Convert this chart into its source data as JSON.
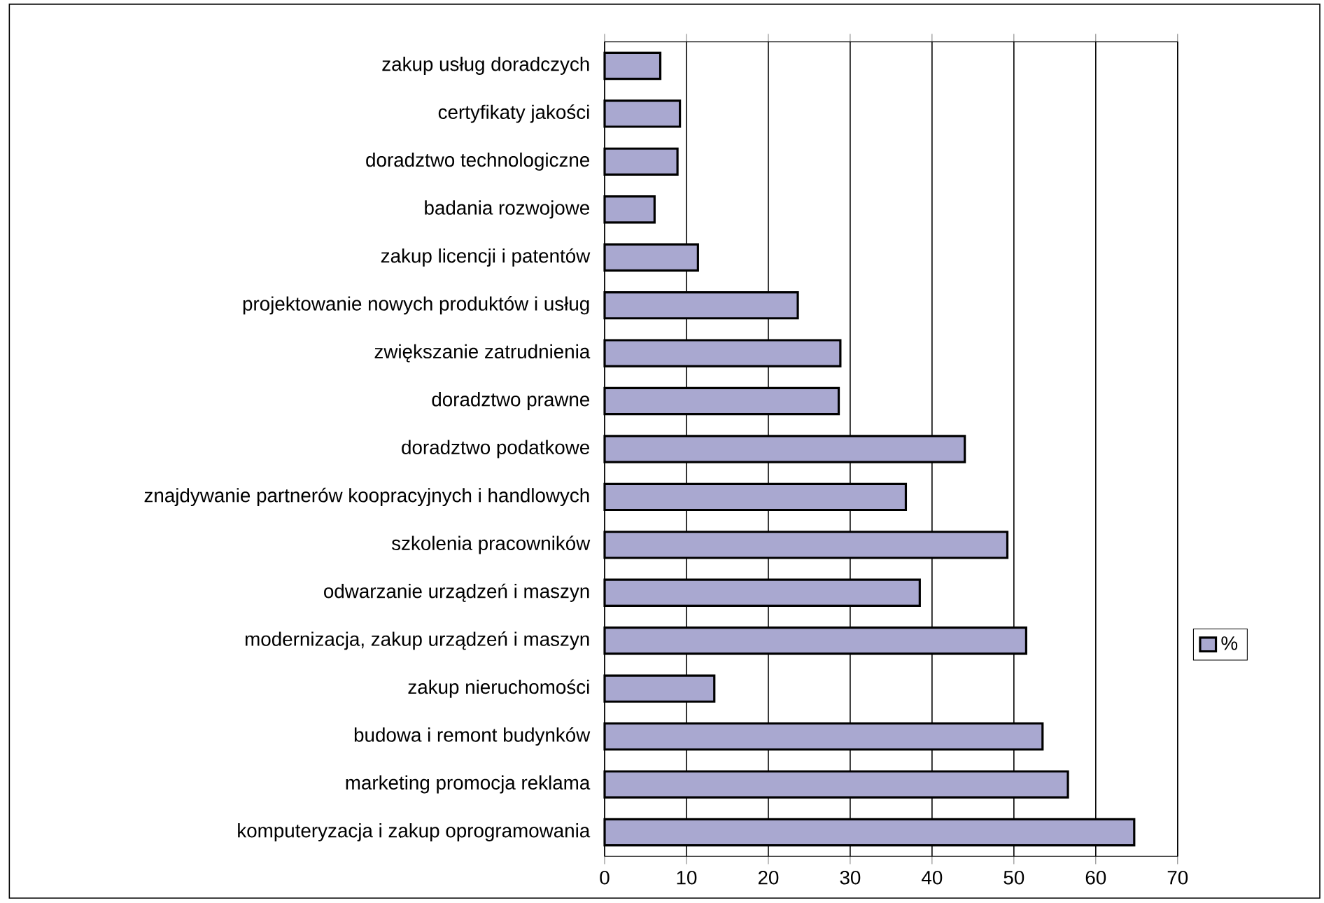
{
  "chart_data": {
    "type": "bar",
    "orientation": "horizontal",
    "categories": [
      "zakup usług doradczych",
      "certyfikaty jakości",
      "doradztwo technologiczne",
      "badania rozwojowe",
      "zakup licencji i patentów",
      "projektowanie nowych produktów i usług",
      "zwiększanie zatrudnienia",
      "doradztwo  prawne",
      "doradztwo  podatkowe",
      "znajdywanie partnerów koopracyjnych i handlowych",
      "szkolenia pracowników",
      "odwarzanie urządzeń i maszyn",
      "modernizacja, zakup urządzeń i maszyn",
      "zakup nieruchomości",
      "budowa i remont budynków",
      "marketing promocja reklama",
      "komputeryzacja i zakup oprogramowania"
    ],
    "series": [
      {
        "name": "%",
        "color": "#a9a8d0",
        "values": [
          6.8,
          9.2,
          8.9,
          6.1,
          11.4,
          23.6,
          28.8,
          28.6,
          44.0,
          36.8,
          49.2,
          38.5,
          51.5,
          13.4,
          53.5,
          56.6,
          64.7
        ]
      }
    ],
    "xlim": [
      0,
      70
    ],
    "xticks": [
      0,
      10,
      20,
      30,
      40,
      50,
      60,
      70
    ],
    "grid": "x",
    "legend": "right"
  }
}
